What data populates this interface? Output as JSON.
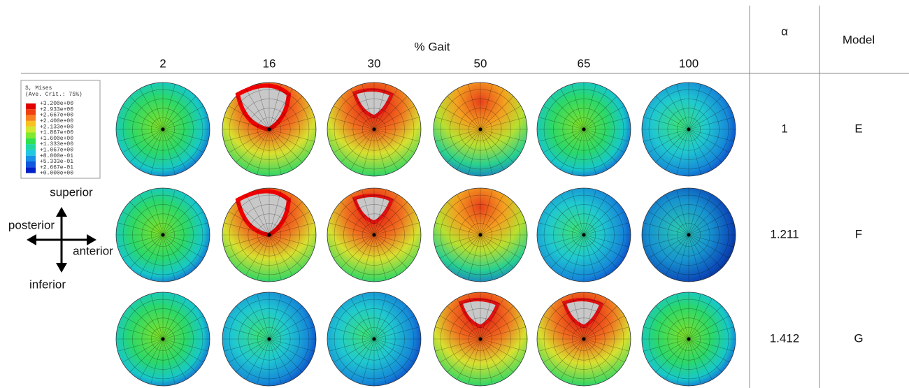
{
  "header": {
    "title": "% Gait",
    "columns": [
      "2",
      "16",
      "30",
      "50",
      "65",
      "100"
    ],
    "alpha": "α",
    "model": "Model"
  },
  "rows": [
    {
      "alpha": "1",
      "model": "E"
    },
    {
      "alpha": "1.211",
      "model": "F"
    },
    {
      "alpha": "1.412",
      "model": "G"
    }
  ],
  "legend": {
    "title": "S, Mises",
    "subtitle": "(Ave. Crit.: 75%)",
    "levels": [
      "+3.200e+00",
      "+2.933e+00",
      "+2.667e+00",
      "+2.400e+00",
      "+2.133e+00",
      "+1.867e+00",
      "+1.600e+00",
      "+1.333e+00",
      "+1.067e+00",
      "+8.000e-01",
      "+5.333e-01",
      "+2.667e-01",
      "+0.000e+00"
    ]
  },
  "directions": {
    "superior": "superior",
    "posterior": "posterior",
    "anterior": "anterior",
    "inferior": "inferior"
  }
}
